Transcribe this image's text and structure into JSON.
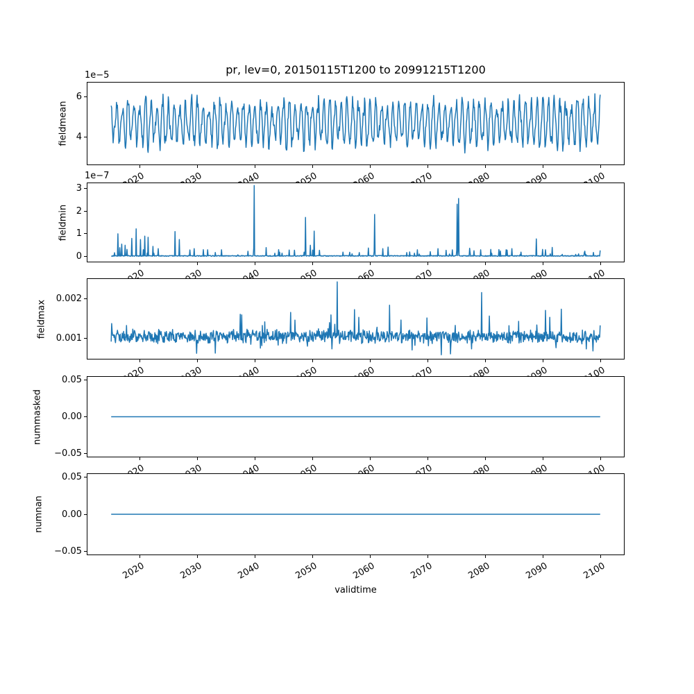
{
  "chart_data": {
    "type": "line",
    "title": "pr, lev=0, 20150115T1200 to 20991215T1200",
    "xlabel": "validtime",
    "line_color": "#1f77b4",
    "grid": false,
    "legend": null,
    "x": {
      "start_year": 2015.042,
      "end_year": 2099.958,
      "samples_per_year": 12,
      "xlim": [
        2010.8,
        2104.2
      ],
      "ticks": [
        2020,
        2030,
        2040,
        2050,
        2060,
        2070,
        2080,
        2090,
        2100
      ],
      "tick_labels": [
        "2020",
        "2030",
        "2040",
        "2050",
        "2060",
        "2070",
        "2080",
        "2090",
        "2100"
      ],
      "tick_rotation_deg": 30
    },
    "panels": [
      {
        "name": "fieldmean",
        "ylabel": "fieldmean",
        "offset_label": "1e−5",
        "unit_exponent": -5,
        "ylim": [
          2.6,
          6.74
        ],
        "yticks": [
          {
            "v": 4,
            "label": "4"
          },
          {
            "v": 6,
            "label": "6"
          }
        ],
        "series": {
          "kind": "seasonal",
          "base": 4.7,
          "amp_min": 0.75,
          "amp_var": 0.45,
          "harmonic2": 0.25,
          "noise": 0.5,
          "clamp": [
            2.95,
            6.55
          ]
        }
      },
      {
        "name": "fieldmin",
        "ylabel": "fieldmin",
        "offset_label": "1e−7",
        "unit_exponent": -7,
        "ylim": [
          -0.25,
          3.25
        ],
        "yticks": [
          {
            "v": 0,
            "label": "0"
          },
          {
            "v": 1,
            "label": "1"
          },
          {
            "v": 2,
            "label": "2"
          },
          {
            "v": 3,
            "label": "3"
          }
        ],
        "series": {
          "kind": "spiky",
          "baseline": 0.015,
          "baseline_jitter": 0.035,
          "small_spike_prob": 0.045,
          "small_spike_max": 0.35,
          "spikes": [
            [
              2016.2,
              1.0
            ],
            [
              2016.9,
              0.55
            ],
            [
              2017.5,
              0.5
            ],
            [
              2018.6,
              0.8
            ],
            [
              2019.4,
              1.22
            ],
            [
              2020.1,
              0.75
            ],
            [
              2020.9,
              0.9
            ],
            [
              2021.5,
              0.85
            ],
            [
              2022.3,
              0.45
            ],
            [
              2023.2,
              0.35
            ],
            [
              2026.1,
              1.1
            ],
            [
              2026.9,
              0.75
            ],
            [
              2029.5,
              0.35
            ],
            [
              2031.8,
              0.3
            ],
            [
              2034.2,
              0.3
            ],
            [
              2039.9,
              3.12
            ],
            [
              2043.5,
              0.15
            ],
            [
              2048.8,
              1.72
            ],
            [
              2049.6,
              0.5
            ],
            [
              2050.3,
              1.12
            ],
            [
              2051.2,
              0.28
            ],
            [
              2055.3,
              0.2
            ],
            [
              2058.1,
              0.18
            ],
            [
              2060.8,
              1.85
            ],
            [
              2062.2,
              0.35
            ],
            [
              2063.1,
              0.42
            ],
            [
              2066.4,
              0.18
            ],
            [
              2068.2,
              0.3
            ],
            [
              2070.5,
              0.22
            ],
            [
              2071.8,
              0.35
            ],
            [
              2073.2,
              0.28
            ],
            [
              2075.1,
              2.3
            ],
            [
              2075.4,
              2.55
            ],
            [
              2077.4,
              0.18
            ],
            [
              2079.2,
              0.3
            ],
            [
              2081.1,
              0.15
            ],
            [
              2082.6,
              0.25
            ],
            [
              2083.6,
              0.3
            ],
            [
              2084.6,
              0.35
            ],
            [
              2086.2,
              0.2
            ],
            [
              2088.9,
              0.78
            ],
            [
              2091.3,
              0.12
            ],
            [
              2096.2,
              0.12
            ],
            [
              2097.5,
              0.1
            ]
          ]
        }
      },
      {
        "name": "fieldmax",
        "ylabel": "fieldmax",
        "offset_label": null,
        "unit_exponent": 0,
        "ylim": [
          0.00046,
          0.00251
        ],
        "yticks": [
          {
            "v": 0.001,
            "label": "0.001"
          },
          {
            "v": 0.002,
            "label": "0.002"
          }
        ],
        "series": {
          "kind": "noisy",
          "base": 0.00104,
          "noise1": 0.00026,
          "noise2": 0.00012,
          "burst_prob": 0.025,
          "dip_prob": 0.02,
          "clamp": [
            0.00055,
            0.0019
          ],
          "spikes": [
            [
              2037.5,
              0.0016
            ],
            [
              2046.2,
              0.00165
            ],
            [
              2054.3,
              0.00242
            ],
            [
              2057.3,
              0.00172
            ],
            [
              2063.4,
              0.00183
            ],
            [
              2079.4,
              0.00215
            ],
            [
              2090.5,
              0.0017
            ],
            [
              2093.2,
              0.00173
            ]
          ],
          "dips": [
            [
              2033.1,
              0.00062
            ],
            [
              2072.4,
              0.00058
            ],
            [
              2074.0,
              0.0006
            ]
          ]
        }
      },
      {
        "name": "nummasked",
        "ylabel": "nummasked",
        "offset_label": null,
        "unit_exponent": 0,
        "ylim": [
          -0.055,
          0.055
        ],
        "yticks": [
          {
            "v": -0.05,
            "label": "−0.05"
          },
          {
            "v": 0,
            "label": "0.00"
          },
          {
            "v": 0.05,
            "label": "0.05"
          }
        ],
        "series": {
          "kind": "constant",
          "value": 0
        }
      },
      {
        "name": "numnan",
        "ylabel": "numnan",
        "offset_label": null,
        "unit_exponent": 0,
        "ylim": [
          -0.055,
          0.055
        ],
        "yticks": [
          {
            "v": -0.05,
            "label": "−0.05"
          },
          {
            "v": 0,
            "label": "0.00"
          },
          {
            "v": 0.05,
            "label": "0.05"
          }
        ],
        "series": {
          "kind": "constant",
          "value": 0
        }
      }
    ]
  }
}
